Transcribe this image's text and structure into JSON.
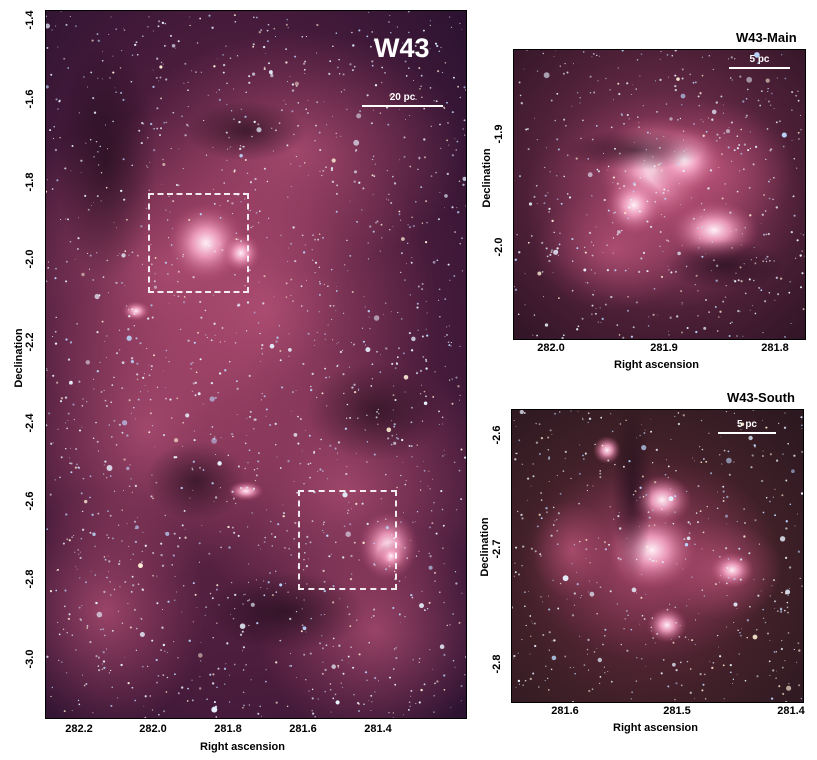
{
  "main_panel": {
    "title": "W43",
    "scale_label": "20 pc",
    "xlabel": "Right ascension",
    "ylabel": "Declination",
    "xticks": [
      "282.2",
      "282.0",
      "281.8",
      "281.6",
      "281.4"
    ],
    "yticks": [
      "-1.4",
      "-1.6",
      "-1.8",
      "-2.0",
      "-2.2",
      "-2.4",
      "-2.6",
      "-2.8",
      "-3.0"
    ]
  },
  "main_inset": {
    "title": "W43-Main",
    "scale_label": "5 pc",
    "xlabel": "Right ascension",
    "ylabel": "Declination",
    "xticks": [
      "282.0",
      "281.9",
      "281.8"
    ],
    "yticks": [
      "-1.9",
      "-2.0"
    ]
  },
  "south_inset": {
    "title": "W43-South",
    "scale_label": "5 pc",
    "xlabel": "Right ascension",
    "ylabel": "Declination",
    "xticks": [
      "281.6",
      "281.5",
      "281.4"
    ],
    "yticks": [
      "-2.6",
      "-2.7",
      "-2.8"
    ]
  },
  "colors": {
    "sky_dark": "#2a1230",
    "nebula": "#b24a6e",
    "nebula_bright": "#f2b8d0",
    "star": "#e8f2ff"
  }
}
